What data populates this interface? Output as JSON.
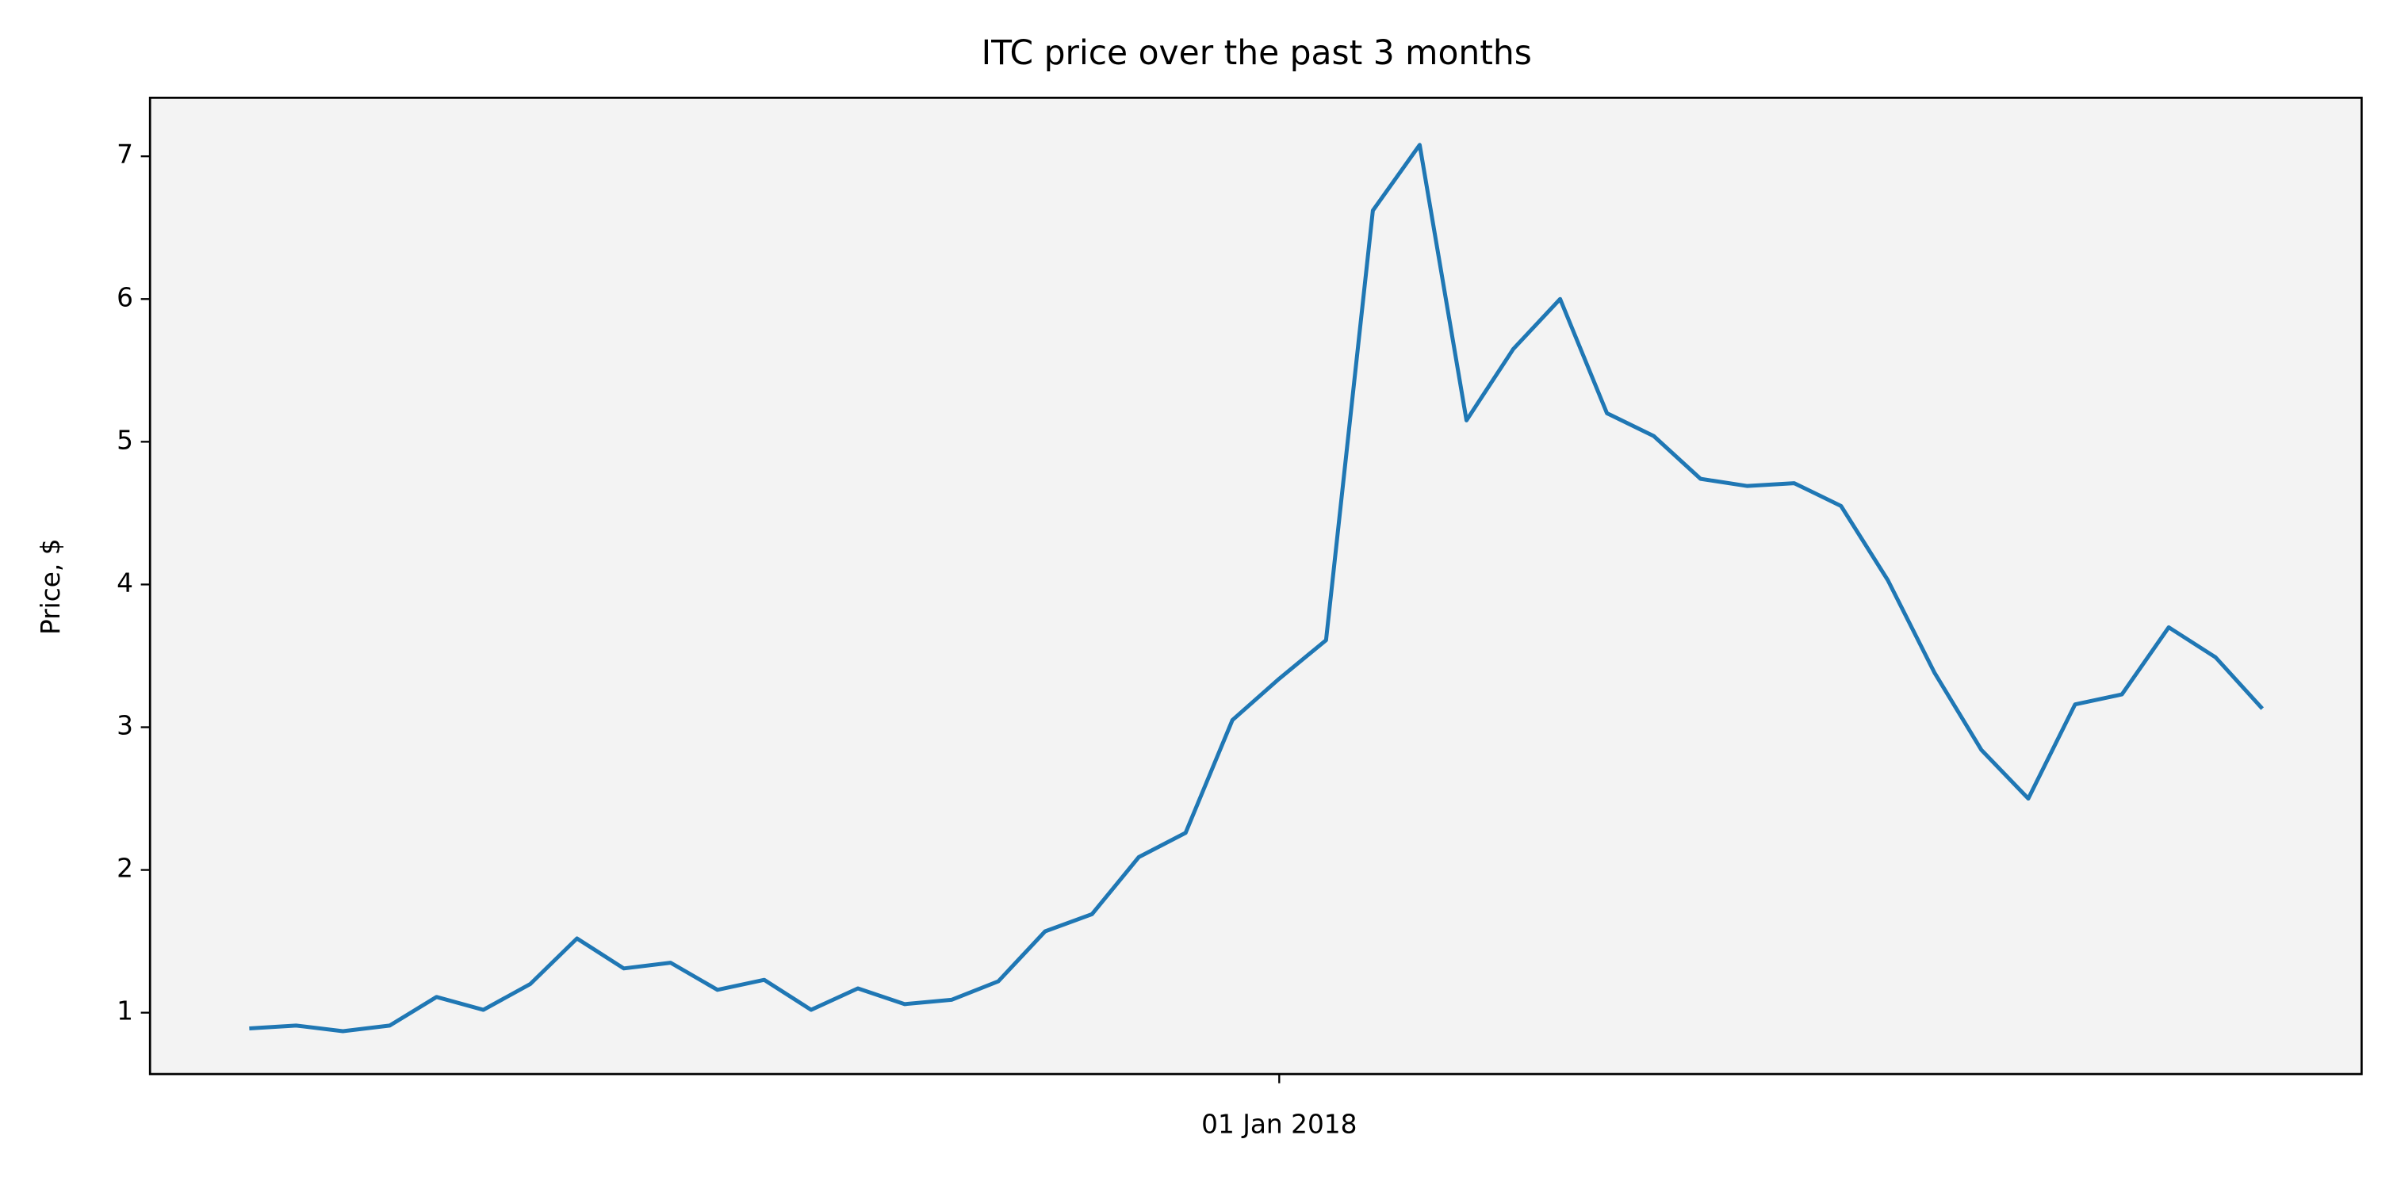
{
  "chart_data": {
    "type": "line",
    "title": "ITC price over the past 3 months",
    "ylabel": "Price, $",
    "categories": [
      null,
      null,
      null,
      null,
      null,
      null,
      null,
      null,
      null,
      null,
      null,
      null,
      null,
      null,
      null,
      null,
      null,
      null,
      null,
      null,
      null,
      null,
      "01 Jan 2018",
      null,
      null,
      null,
      null,
      null,
      null,
      null,
      null,
      null,
      null,
      null,
      null,
      null,
      null,
      null,
      null,
      null,
      null,
      null,
      null,
      null
    ],
    "values": [
      0.89,
      0.91,
      0.87,
      0.91,
      1.11,
      1.02,
      1.2,
      1.52,
      1.31,
      1.35,
      1.16,
      1.23,
      1.02,
      1.17,
      1.06,
      1.09,
      1.22,
      1.57,
      1.69,
      2.09,
      2.26,
      3.05,
      3.34,
      3.61,
      6.62,
      7.08,
      5.15,
      5.65,
      6.0,
      5.2,
      5.04,
      4.74,
      4.69,
      4.71,
      4.55,
      4.03,
      3.38,
      2.84,
      2.5,
      3.16,
      3.23,
      3.7,
      3.49,
      3.13
    ],
    "color": "#1f77b4",
    "ylim": [
      0.57,
      7.41
    ],
    "yticks": [
      1,
      2,
      3,
      4,
      5,
      6,
      7
    ],
    "grid": false
  }
}
